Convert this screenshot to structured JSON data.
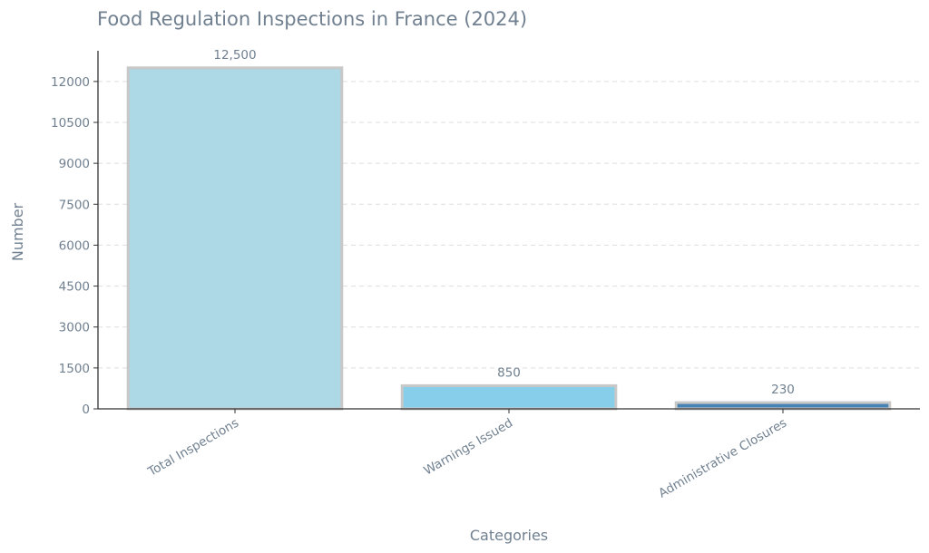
{
  "chart_data": {
    "type": "bar",
    "title": "Food Regulation Inspections in France (2024)",
    "xlabel": "Categories",
    "ylabel": "Number",
    "categories": [
      "Total Inspections",
      "Warnings Issued",
      "Administrative Closures"
    ],
    "values": [
      12500,
      850,
      230
    ],
    "value_labels": [
      "12,500",
      "850",
      "230"
    ],
    "bar_colors": [
      "#add8e6",
      "#87ceeb",
      "#4682b4"
    ],
    "bar_edge_color": "#c8c8c8",
    "yticks": [
      0,
      1500,
      3000,
      4500,
      6000,
      7500,
      9000,
      10500,
      12000
    ],
    "ytick_labels": [
      "0",
      "1500",
      "3000",
      "4500",
      "6000",
      "7500",
      "9000",
      "10500",
      "12000"
    ],
    "ylim": [
      0,
      13125
    ],
    "grid": "horizontal dashed",
    "text_color": "#708090"
  }
}
